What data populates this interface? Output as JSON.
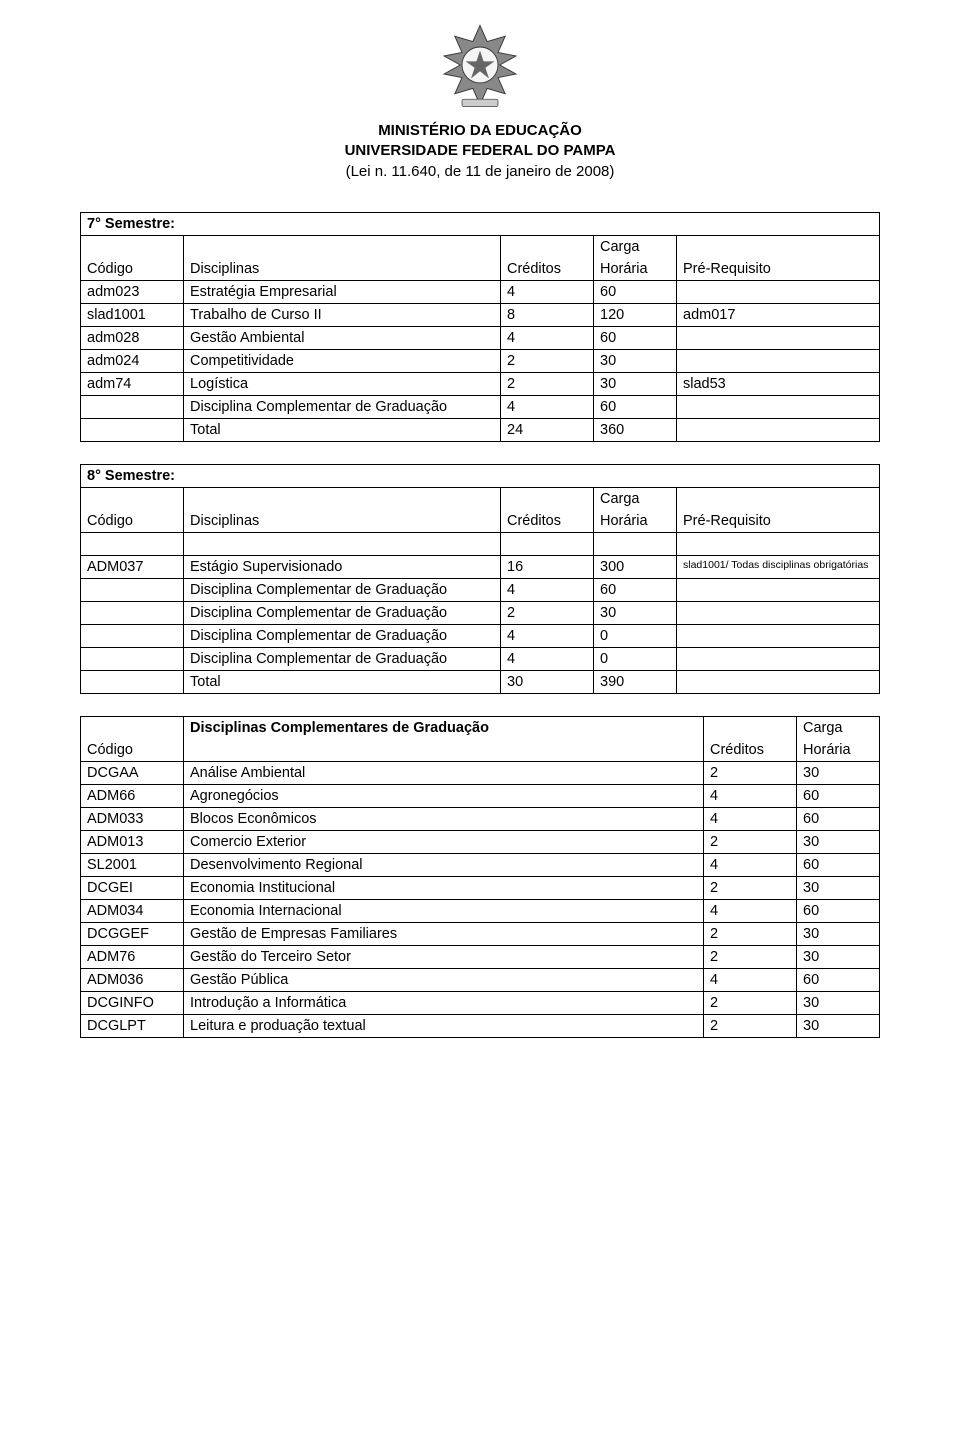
{
  "header": {
    "line1": "MINISTÉRIO DA EDUCAÇÃO",
    "line2": "UNIVERSIDADE FEDERAL DO PAMPA",
    "line3": "(Lei n. 11.640, de 11 de janeiro de 2008)"
  },
  "labels": {
    "codigo": "Código",
    "disciplinas": "Disciplinas",
    "creditos": "Créditos",
    "carga": "Carga",
    "horaria": "Horária",
    "prereq": "Pré-Requisito",
    "total": "Total",
    "dcg": "Disciplina Complementar de Graduação",
    "dcg_plural": "Disciplinas Complementares de Graduação"
  },
  "sem7": {
    "title": "7° Semestre:",
    "rows": [
      {
        "code": "adm023",
        "name": "Estratégia Empresarial",
        "cred": "4",
        "hor": "60",
        "prereq": ""
      },
      {
        "code": "slad1001",
        "name": "Trabalho de Curso II",
        "cred": "8",
        "hor": "120",
        "prereq": "adm017"
      },
      {
        "code": "adm028",
        "name": "Gestão Ambiental",
        "cred": "4",
        "hor": "60",
        "prereq": ""
      },
      {
        "code": "adm024",
        "name": "Competitividade",
        "cred": "2",
        "hor": "30",
        "prereq": ""
      },
      {
        "code": "adm74",
        "name": "Logística",
        "cred": "2",
        "hor": "30",
        "prereq": "slad53"
      }
    ],
    "dcg": {
      "cred": "4",
      "hor": "60"
    },
    "total": {
      "cred": "24",
      "hor": "360"
    }
  },
  "sem8": {
    "title": "8° Semestre:",
    "rows": [
      {
        "code": "ADM037",
        "name": "Estágio Supervisionado",
        "cred": "16",
        "hor": "300",
        "prereq": "slad1001/ Todas disciplinas obrigatórias",
        "prereq_small": true
      }
    ],
    "dcgs": [
      {
        "cred": "4",
        "hor": "60"
      },
      {
        "cred": "2",
        "hor": "30"
      },
      {
        "cred": "4",
        "hor": "0"
      },
      {
        "cred": "4",
        "hor": "0"
      }
    ],
    "total": {
      "cred": "30",
      "hor": "390"
    }
  },
  "comp": {
    "rows": [
      {
        "code": "DCGAA",
        "name": "Análise Ambiental",
        "cred": "2",
        "hor": "30"
      },
      {
        "code": "ADM66",
        "name": "Agronegócios",
        "cred": "4",
        "hor": "60"
      },
      {
        "code": "ADM033",
        "name": "Blocos Econômicos",
        "cred": "4",
        "hor": "60"
      },
      {
        "code": "ADM013",
        "name": "Comercio Exterior",
        "cred": "2",
        "hor": "30"
      },
      {
        "code": "SL2001",
        "name": "Desenvolvimento Regional",
        "cred": "4",
        "hor": "60"
      },
      {
        "code": "DCGEI",
        "name": "Economia Institucional",
        "cred": "2",
        "hor": "30"
      },
      {
        "code": "ADM034",
        "name": "Economia Internacional",
        "cred": "4",
        "hor": "60"
      },
      {
        "code": "DCGGEF",
        "name": "Gestão de Empresas Familiares",
        "cred": "2",
        "hor": "30"
      },
      {
        "code": "ADM76",
        "name": "Gestão do Terceiro Setor",
        "cred": "2",
        "hor": "30"
      },
      {
        "code": "ADM036",
        "name": "Gestão Pública",
        "cred": "4",
        "hor": "60"
      },
      {
        "code": "DCGINFO",
        "name": "Introdução a Informática",
        "cred": "2",
        "hor": "30"
      },
      {
        "code": "DCGLPT",
        "name": "Leitura e produação textual",
        "cred": "2",
        "hor": "30"
      }
    ]
  },
  "colors": {
    "text": "#000000",
    "border": "#000000",
    "background": "#ffffff"
  }
}
